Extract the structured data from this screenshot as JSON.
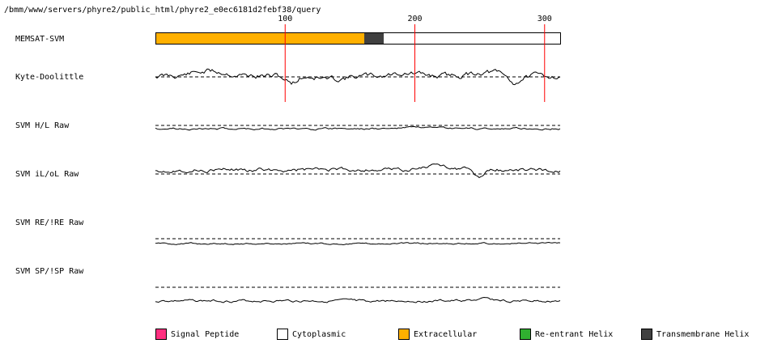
{
  "path": "/bmm/www/servers/phyre2/public_html/phyre2_e0ec6181d2febf38/query",
  "axis": {
    "ticks": [
      100,
      200,
      300
    ],
    "length": 312
  },
  "tracks": {
    "memsat": "MEMSAT-SVM",
    "kd": "Kyte-Doolittle",
    "hl": "SVM H/L Raw",
    "iloL": "SVM iL/oL Raw",
    "reire": "SVM RE/!RE Raw",
    "spisp": "SVM SP/!SP Raw"
  },
  "memsat_segments": [
    {
      "type": "Extracellular",
      "start": 1,
      "end": 162,
      "color": "#ffb000"
    },
    {
      "type": "Transmembrane Helix",
      "start": 162,
      "end": 177,
      "color": "#404040"
    },
    {
      "type": "Cytoplasmic",
      "start": 177,
      "end": 312,
      "color": "#ffffff"
    }
  ],
  "legend": [
    {
      "label": "Signal Peptide",
      "color": "#ff3080"
    },
    {
      "label": "Cytoplasmic",
      "color": "#ffffff"
    },
    {
      "label": "Extracellular",
      "color": "#ffb000"
    },
    {
      "label": "Re-entrant Helix",
      "color": "#30b030"
    },
    {
      "label": "Transmembrane Helix",
      "color": "#404040"
    }
  ]
}
